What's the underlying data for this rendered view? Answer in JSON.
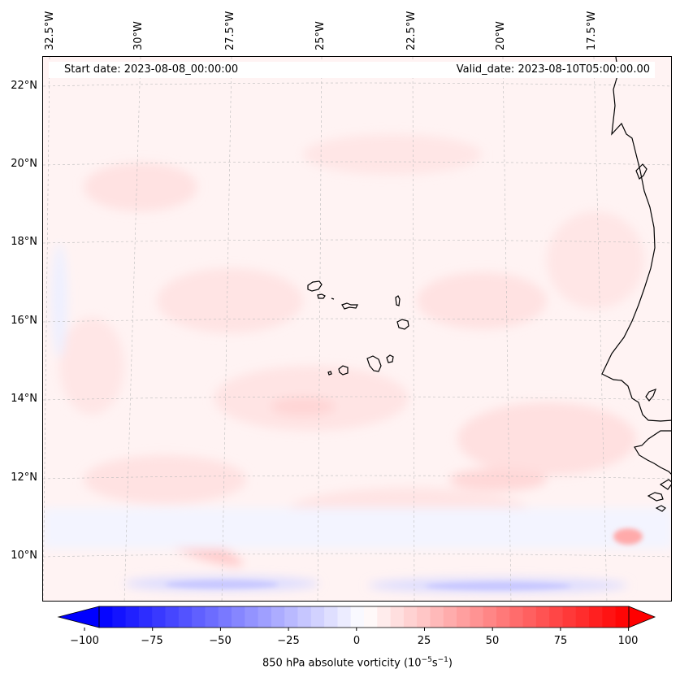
{
  "header": {
    "start_date": "Start date: 2023-08-08_00:00:00",
    "valid_date": "Valid_date: 2023-08-10T05:00:00.00"
  },
  "map": {
    "longitude_labels": [
      "32.5°W",
      "30°W",
      "27.5°W",
      "25°W",
      "22.5°W",
      "20°W",
      "17.5°W"
    ],
    "latitude_labels": [
      "22°N",
      "20°N",
      "18°N",
      "16°N",
      "14°N",
      "12°N",
      "10°N"
    ],
    "features": [
      "Cape Verde islands",
      "West African coastline"
    ],
    "gridlines": true
  },
  "colorbar": {
    "title_prefix": "850 hPa absolute vorticity (10",
    "title_exp1": "−5",
    "title_mid": "s",
    "title_exp2": "−1",
    "title_suffix": ")",
    "tick_labels": [
      "−100",
      "−75",
      "−50",
      "−25",
      "0",
      "25",
      "50",
      "75",
      "100"
    ],
    "range": [
      -100,
      100
    ],
    "colors": {
      "negative": "#0000ff",
      "zero": "#ffffff",
      "positive": "#ff0000"
    }
  }
}
